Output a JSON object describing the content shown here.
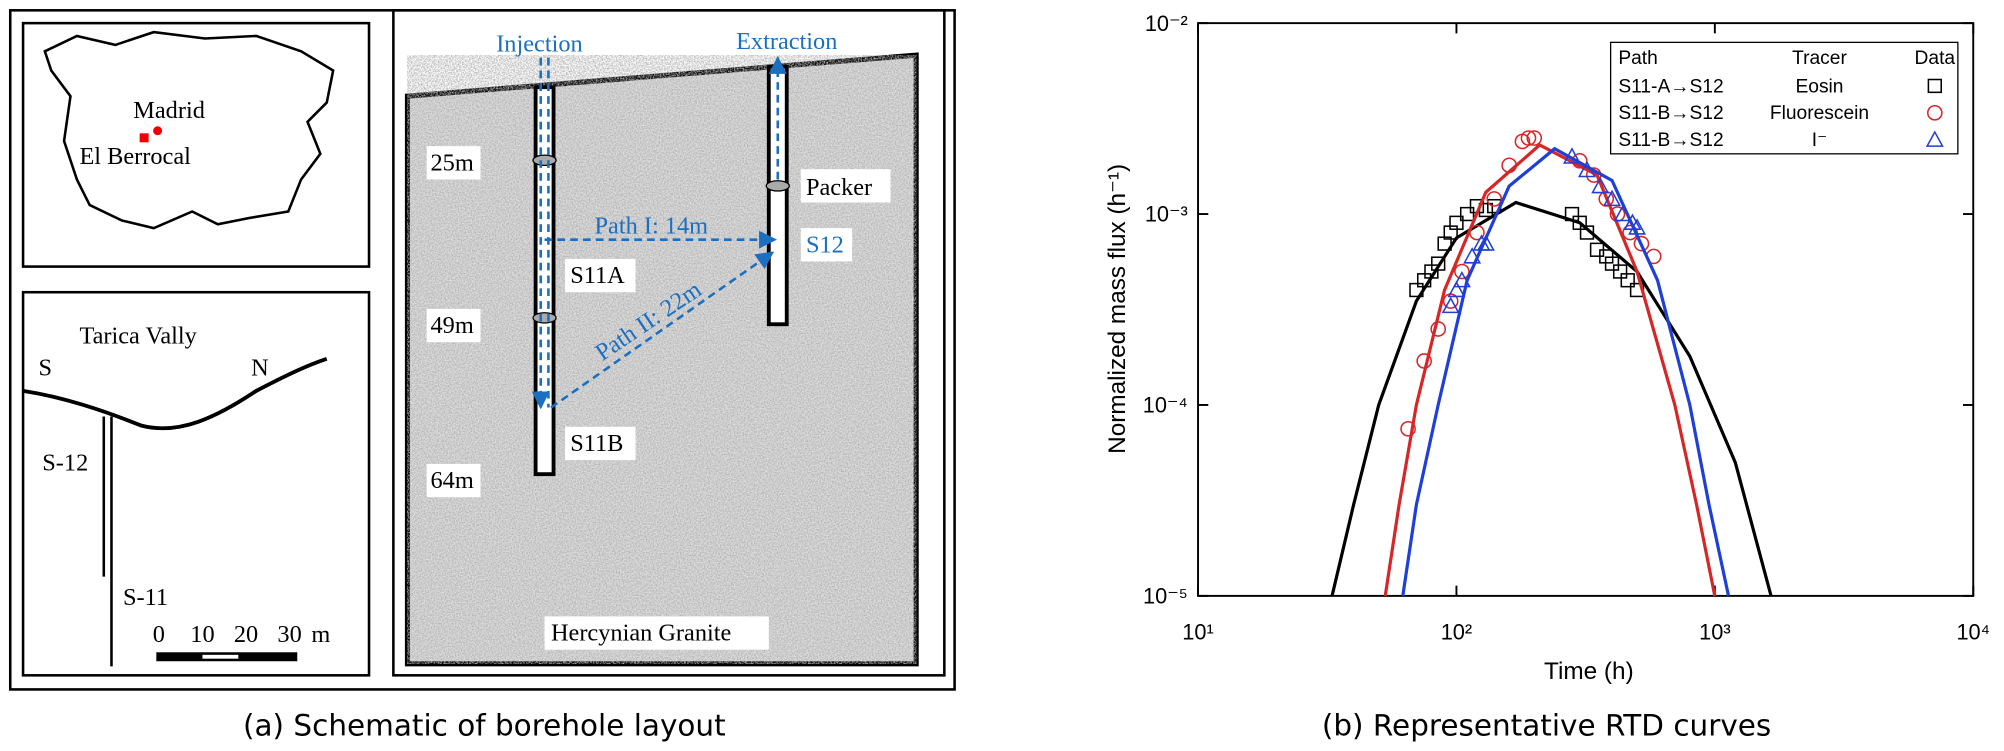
{
  "schematic": {
    "map": {
      "city": "Madrid",
      "site": "El Berrocal"
    },
    "section": {
      "title": "Tarica Vally",
      "south": "S",
      "north": "N",
      "well_a": "S-12",
      "well_b": "S-11",
      "scale": [
        "0",
        "10",
        "20",
        "30",
        "m"
      ]
    },
    "boreholes": {
      "injection": "Injection",
      "extraction": "Extraction",
      "depths": [
        "25m",
        "49m",
        "64m"
      ],
      "path_1": "Path I: 14m",
      "path_2": "Path II: 22m",
      "s11a": "S11A",
      "s11b": "S11B",
      "s12": "S12",
      "packer": "Packer",
      "rock": "Hercynian Granite"
    },
    "caption": "(a) Schematic of borehole layout"
  },
  "chart_data": {
    "type": "line",
    "caption": "(b) Representative RTD curves",
    "xlabel": "Time (h)",
    "ylabel": "Normalized mass flux (h⁻¹)",
    "xscale": "log",
    "yscale": "log",
    "xlim": [
      10,
      10000
    ],
    "ylim": [
      1e-05,
      0.01
    ],
    "xticks": [
      {
        "value": 10,
        "label": "10¹"
      },
      {
        "value": 100,
        "label": "10²"
      },
      {
        "value": 1000,
        "label": "10³"
      },
      {
        "value": 10000,
        "label": "10⁴"
      }
    ],
    "yticks": [
      {
        "value": 1e-05,
        "label": "10⁻⁵"
      },
      {
        "value": 0.0001,
        "label": "10⁻⁴"
      },
      {
        "value": 0.001,
        "label": "10⁻³"
      },
      {
        "value": 0.01,
        "label": "10⁻²"
      }
    ],
    "legend": {
      "position": "upper right",
      "headers": [
        "Path",
        "Tracer",
        "Data"
      ]
    },
    "series": [
      {
        "name": "S11-A→S12",
        "tracer": "Eosin",
        "color": "#000000",
        "marker": "square",
        "x": [
          70,
          75,
          80,
          85,
          90,
          95,
          100,
          110,
          120,
          130,
          140,
          280,
          300,
          320,
          350,
          380,
          400,
          430,
          460,
          500
        ],
        "values": [
          0.0004,
          0.00045,
          0.0005,
          0.00055,
          0.0007,
          0.0008,
          0.0009,
          0.001,
          0.0011,
          0.00105,
          0.0011,
          0.001,
          0.0009,
          0.0008,
          0.00065,
          0.0006,
          0.00055,
          0.0005,
          0.00045,
          0.0004
        ],
        "fit": {
          "x": [
            33,
            40,
            50,
            70,
            100,
            170,
            300,
            500,
            800,
            1200,
            1650
          ],
          "values": [
            1e-05,
            3e-05,
            0.0001,
            0.00035,
            0.00075,
            0.00115,
            0.0009,
            0.0005,
            0.00018,
            5e-05,
            1e-05
          ]
        }
      },
      {
        "name": "S11-B→S12",
        "tracer": "Fluorescein",
        "color": "#d62728",
        "marker": "circle",
        "x": [
          65,
          75,
          85,
          95,
          105,
          120,
          140,
          160,
          180,
          190,
          200,
          300,
          340,
          380,
          420,
          470,
          520,
          580
        ],
        "values": [
          7.5e-05,
          0.00017,
          0.00025,
          0.00035,
          0.0005,
          0.0008,
          0.0012,
          0.0018,
          0.0024,
          0.0025,
          0.0025,
          0.0019,
          0.0016,
          0.0012,
          0.001,
          0.0008,
          0.0007,
          0.0006
        ],
        "fit": {
          "x": [
            53,
            60,
            70,
            90,
            130,
            210,
            350,
            500,
            700,
            850,
            1000
          ],
          "values": [
            1e-05,
            3e-05,
            0.0001,
            0.0004,
            0.0013,
            0.0023,
            0.0016,
            0.0005,
            0.0001,
            3e-05,
            1e-05
          ]
        }
      },
      {
        "name": "S11-B→S12",
        "tracer": "I⁻",
        "color": "#1f3fd6",
        "marker": "triangle",
        "x": [
          95,
          100,
          105,
          115,
          125,
          130,
          280,
          320,
          360,
          400,
          440,
          480,
          500
        ],
        "values": [
          0.00033,
          0.0004,
          0.00045,
          0.0006,
          0.0007,
          0.0007,
          0.002,
          0.0017,
          0.0014,
          0.0012,
          0.001,
          0.0009,
          0.00085
        ],
        "fit": {
          "x": [
            62,
            70,
            85,
            110,
            160,
            240,
            400,
            600,
            800,
            950,
            1130
          ],
          "values": [
            1e-05,
            3e-05,
            0.0001,
            0.00045,
            0.0014,
            0.0022,
            0.0015,
            0.00045,
            0.0001,
            3e-05,
            1e-05
          ]
        }
      }
    ]
  }
}
